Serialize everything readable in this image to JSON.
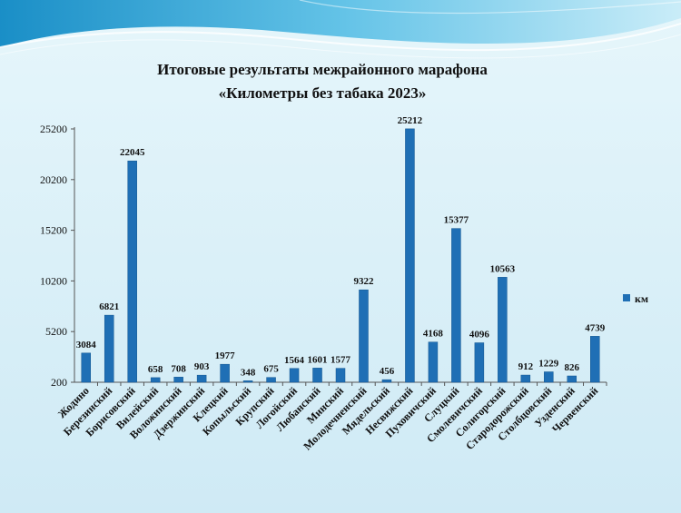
{
  "title_line1": "Итоговые результаты межрайонного марафона",
  "title_line2": "«Километры без табака 2023»",
  "colors": {
    "bar": "#1f6fb5",
    "bar_edge": "#12558f",
    "background": "#d6eef7",
    "wave": "#3aa0cf"
  },
  "chart_data": {
    "type": "bar",
    "title": "Итоговые результаты межрайонного марафона «Километры без табака 2023»",
    "categories": [
      "Жодино",
      "Березинский",
      "Борисовский",
      "Вилейский",
      "Воложинский",
      "Дзержинский",
      "Клецкий",
      "Копыльский",
      "Крупский",
      "Логойский",
      "Любанский",
      "Минский",
      "Молодечненский",
      "Мядельский",
      "Несвижский",
      "Пуховичский",
      "Слуцкий",
      "Смолевичский",
      "Солигорский",
      "Стародорожский",
      "Столбцовский",
      "Узденский",
      "Червенский"
    ],
    "series": [
      {
        "name": "км",
        "values": [
          3084,
          6821,
          22045,
          658,
          708,
          903,
          1977,
          348,
          675,
          1564,
          1601,
          1577,
          9322,
          456,
          25212,
          4168,
          15377,
          4096,
          10563,
          912,
          1229,
          826,
          4739
        ]
      }
    ],
    "yticks": [
      200,
      5200,
      10200,
      15200,
      20200,
      25200
    ],
    "ylim": [
      200,
      25200
    ],
    "legend_position": "right",
    "grid": false
  }
}
